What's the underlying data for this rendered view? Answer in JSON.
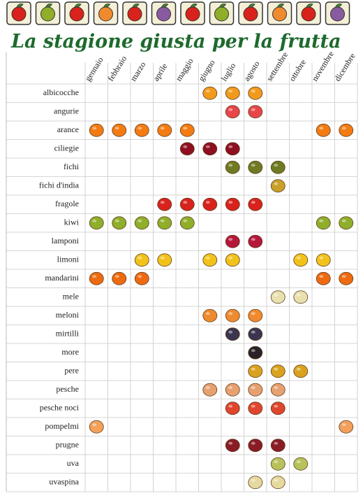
{
  "title": "La stagione giusta per la frutta",
  "table": {
    "months": [
      "gennaio",
      "febbraio",
      "marzo",
      "aprile",
      "maggio",
      "giugno",
      "luglio",
      "agosto",
      "settembre",
      "ottobre",
      "novembre",
      "dicembre"
    ],
    "rows": [
      {
        "name": "albicocche",
        "color": "#f29a1c",
        "available": [
          false,
          false,
          false,
          false,
          false,
          true,
          true,
          true,
          false,
          false,
          false,
          false
        ]
      },
      {
        "name": "angurie",
        "color": "#e8454a",
        "available": [
          false,
          false,
          false,
          false,
          false,
          false,
          true,
          true,
          false,
          false,
          false,
          false
        ]
      },
      {
        "name": "arance",
        "color": "#f47b12",
        "available": [
          true,
          true,
          true,
          true,
          true,
          false,
          false,
          false,
          false,
          false,
          true,
          true
        ]
      },
      {
        "name": "ciliegie",
        "color": "#8e1020",
        "available": [
          false,
          false,
          false,
          false,
          true,
          true,
          true,
          false,
          false,
          false,
          false,
          false
        ]
      },
      {
        "name": "fichi",
        "color": "#6f7a22",
        "available": [
          false,
          false,
          false,
          false,
          false,
          false,
          true,
          true,
          true,
          false,
          false,
          false
        ]
      },
      {
        "name": "fichi d'india",
        "color": "#c9a12a",
        "available": [
          false,
          false,
          false,
          false,
          false,
          false,
          false,
          false,
          true,
          false,
          false,
          false
        ]
      },
      {
        "name": "fragole",
        "color": "#d9221c",
        "available": [
          false,
          false,
          false,
          true,
          true,
          true,
          true,
          true,
          false,
          false,
          false,
          false
        ]
      },
      {
        "name": "kiwi",
        "color": "#8fae2a",
        "available": [
          true,
          true,
          true,
          true,
          true,
          false,
          false,
          false,
          false,
          false,
          true,
          true
        ]
      },
      {
        "name": "lamponi",
        "color": "#b5173a",
        "available": [
          false,
          false,
          false,
          false,
          false,
          false,
          true,
          true,
          false,
          false,
          false,
          false
        ]
      },
      {
        "name": "limoni",
        "color": "#f2c21a",
        "available": [
          false,
          false,
          true,
          true,
          false,
          true,
          true,
          false,
          false,
          true,
          true,
          false
        ]
      },
      {
        "name": "mandarini",
        "color": "#ee6a10",
        "available": [
          true,
          true,
          true,
          false,
          false,
          false,
          false,
          false,
          false,
          false,
          true,
          true
        ]
      },
      {
        "name": "mele",
        "color": "#e9e0b0",
        "available": [
          false,
          false,
          false,
          false,
          false,
          false,
          false,
          false,
          true,
          true,
          false,
          false
        ]
      },
      {
        "name": "meloni",
        "color": "#f08a2e",
        "available": [
          false,
          false,
          false,
          false,
          false,
          true,
          true,
          true,
          false,
          false,
          false,
          false
        ]
      },
      {
        "name": "mirtilli",
        "color": "#3a3550",
        "available": [
          false,
          false,
          false,
          false,
          false,
          false,
          true,
          true,
          false,
          false,
          false,
          false
        ]
      },
      {
        "name": "more",
        "color": "#2a2228",
        "available": [
          false,
          false,
          false,
          false,
          false,
          false,
          false,
          true,
          false,
          false,
          false,
          false
        ]
      },
      {
        "name": "pere",
        "color": "#d9a21e",
        "available": [
          false,
          false,
          false,
          false,
          false,
          false,
          false,
          true,
          true,
          true,
          false,
          false
        ]
      },
      {
        "name": "pesche",
        "color": "#e7a070",
        "available": [
          false,
          false,
          false,
          false,
          false,
          true,
          true,
          true,
          true,
          false,
          false,
          false
        ]
      },
      {
        "name": "pesche noci",
        "color": "#e0452e",
        "available": [
          false,
          false,
          false,
          false,
          false,
          false,
          true,
          true,
          true,
          false,
          false,
          false
        ]
      },
      {
        "name": "pompelmi",
        "color": "#f2a05a",
        "available": [
          true,
          false,
          false,
          false,
          false,
          false,
          false,
          false,
          false,
          false,
          false,
          true
        ]
      },
      {
        "name": "prugne",
        "color": "#8a1c26",
        "available": [
          false,
          false,
          false,
          false,
          false,
          false,
          true,
          true,
          true,
          false,
          false,
          false
        ]
      },
      {
        "name": "uva",
        "color": "#b8c25a",
        "available": [
          false,
          false,
          false,
          false,
          false,
          false,
          false,
          false,
          true,
          true,
          false,
          false
        ]
      },
      {
        "name": "uvaspina",
        "color": "#e6d9a0",
        "available": [
          false,
          false,
          false,
          false,
          false,
          false,
          false,
          true,
          true,
          false,
          false,
          false
        ]
      }
    ]
  }
}
